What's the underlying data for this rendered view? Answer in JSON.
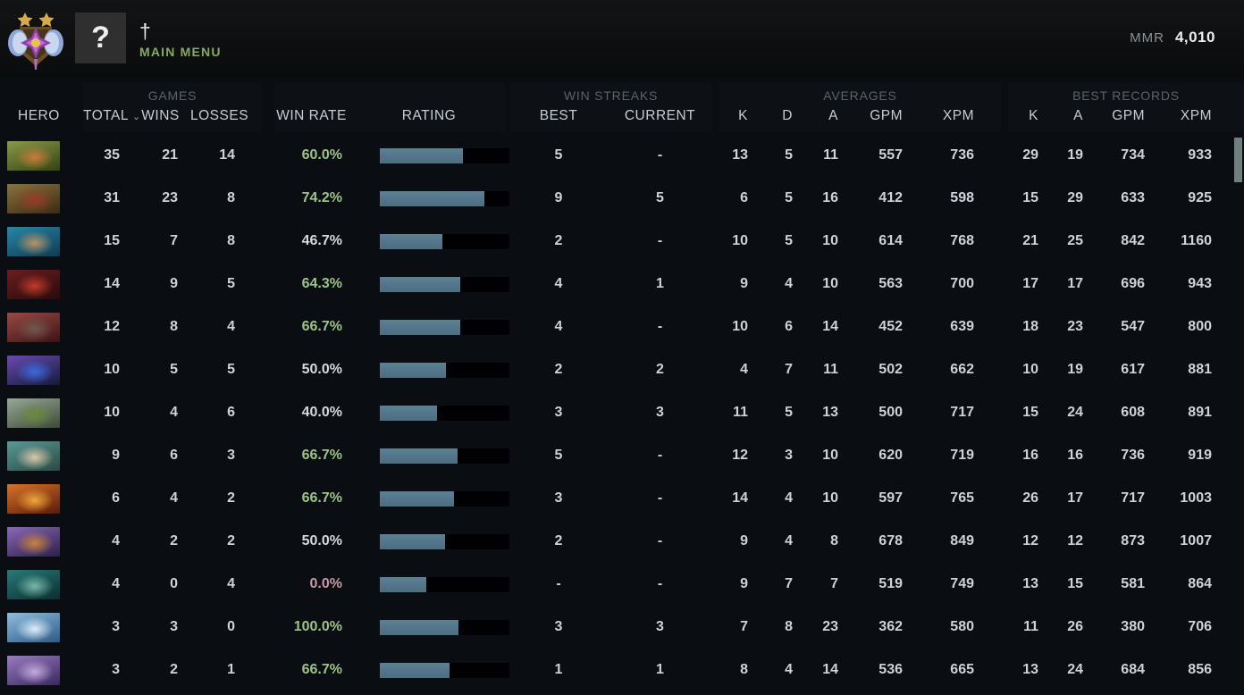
{
  "header": {
    "player_name": "†",
    "avatar_glyph": "?",
    "main_menu_label": "MAIN MENU",
    "mmr_label": "MMR",
    "mmr_value": "4,010"
  },
  "table": {
    "groups": {
      "games": "GAMES",
      "win_streaks": "WIN STREAKS",
      "averages": "AVERAGES",
      "best_records": "BEST RECORDS"
    },
    "columns": {
      "hero": "HERO",
      "total": "TOTAL",
      "wins": "WINS",
      "losses": "LOSSES",
      "win_rate": "WIN RATE",
      "rating": "RATING",
      "best": "BEST",
      "current": "CURRENT",
      "k": "K",
      "d": "D",
      "a": "A",
      "gpm": "GPM",
      "xpm": "XPM"
    },
    "sort_indicator_column": "total",
    "rows": [
      {
        "portrait": {
          "c1": "#8a9a4a",
          "c2": "#35430f",
          "c3": "#c87c3c"
        },
        "total": "35",
        "wins": "21",
        "losses": "14",
        "win_rate": "60.0%",
        "win_rate_color": "green",
        "rating_pct": 64,
        "streak_best": "5",
        "streak_current": "-",
        "avg_k": "13",
        "avg_d": "5",
        "avg_a": "11",
        "avg_gpm": "557",
        "avg_xpm": "736",
        "best_k": "29",
        "best_a": "19",
        "best_gpm": "734",
        "best_xpm": "933"
      },
      {
        "portrait": {
          "c1": "#8a7340",
          "c2": "#3c2a12",
          "c3": "#9a3a28"
        },
        "total": "31",
        "wins": "23",
        "losses": "8",
        "win_rate": "74.2%",
        "win_rate_color": "green",
        "rating_pct": 81,
        "streak_best": "9",
        "streak_current": "5",
        "avg_k": "6",
        "avg_d": "5",
        "avg_a": "16",
        "avg_gpm": "412",
        "avg_xpm": "598",
        "best_k": "15",
        "best_a": "29",
        "best_gpm": "633",
        "best_xpm": "925"
      },
      {
        "portrait": {
          "c1": "#2a86a8",
          "c2": "#0c3c54",
          "c3": "#b89464"
        },
        "total": "15",
        "wins": "7",
        "losses": "8",
        "win_rate": "46.7%",
        "win_rate_color": "white",
        "rating_pct": 48,
        "streak_best": "2",
        "streak_current": "-",
        "avg_k": "10",
        "avg_d": "5",
        "avg_a": "10",
        "avg_gpm": "614",
        "avg_xpm": "768",
        "best_k": "21",
        "best_a": "25",
        "best_gpm": "842",
        "best_xpm": "1160"
      },
      {
        "portrait": {
          "c1": "#6a1e1e",
          "c2": "#2a0a0a",
          "c3": "#c03a2a"
        },
        "total": "14",
        "wins": "9",
        "losses": "5",
        "win_rate": "64.3%",
        "win_rate_color": "green",
        "rating_pct": 62,
        "streak_best": "4",
        "streak_current": "1",
        "avg_k": "9",
        "avg_d": "4",
        "avg_a": "10",
        "avg_gpm": "563",
        "avg_xpm": "700",
        "best_k": "17",
        "best_a": "17",
        "best_gpm": "696",
        "best_xpm": "943"
      },
      {
        "portrait": {
          "c1": "#9a4a44",
          "c2": "#3c1216",
          "c3": "#70584c"
        },
        "total": "12",
        "wins": "8",
        "losses": "4",
        "win_rate": "66.7%",
        "win_rate_color": "green",
        "rating_pct": 62,
        "streak_best": "4",
        "streak_current": "-",
        "avg_k": "10",
        "avg_d": "6",
        "avg_a": "14",
        "avg_gpm": "452",
        "avg_xpm": "639",
        "best_k": "18",
        "best_a": "23",
        "best_gpm": "547",
        "best_xpm": "800"
      },
      {
        "portrait": {
          "c1": "#6a4ab0",
          "c2": "#141a3c",
          "c3": "#3a6ae0"
        },
        "total": "10",
        "wins": "5",
        "losses": "5",
        "win_rate": "50.0%",
        "win_rate_color": "white",
        "rating_pct": 51,
        "streak_best": "2",
        "streak_current": "2",
        "avg_k": "4",
        "avg_d": "7",
        "avg_a": "11",
        "avg_gpm": "502",
        "avg_xpm": "662",
        "best_k": "10",
        "best_a": "19",
        "best_gpm": "617",
        "best_xpm": "881"
      },
      {
        "portrait": {
          "c1": "#9aa89a",
          "c2": "#3c4a34",
          "c3": "#6a8a3c"
        },
        "total": "10",
        "wins": "4",
        "losses": "6",
        "win_rate": "40.0%",
        "win_rate_color": "white",
        "rating_pct": 44,
        "streak_best": "3",
        "streak_current": "3",
        "avg_k": "11",
        "avg_d": "5",
        "avg_a": "13",
        "avg_gpm": "500",
        "avg_xpm": "717",
        "best_k": "15",
        "best_a": "24",
        "best_gpm": "608",
        "best_xpm": "891"
      },
      {
        "portrait": {
          "c1": "#5a9a96",
          "c2": "#2a4a44",
          "c3": "#d8c8a8"
        },
        "total": "9",
        "wins": "6",
        "losses": "3",
        "win_rate": "66.7%",
        "win_rate_color": "green",
        "rating_pct": 60,
        "streak_best": "5",
        "streak_current": "-",
        "avg_k": "12",
        "avg_d": "3",
        "avg_a": "10",
        "avg_gpm": "620",
        "avg_xpm": "719",
        "best_k": "16",
        "best_a": "16",
        "best_gpm": "736",
        "best_xpm": "919"
      },
      {
        "portrait": {
          "c1": "#d8742a",
          "c2": "#5a1a08",
          "c3": "#f0a83a"
        },
        "total": "6",
        "wins": "4",
        "losses": "2",
        "win_rate": "66.7%",
        "win_rate_color": "green",
        "rating_pct": 57,
        "streak_best": "3",
        "streak_current": "-",
        "avg_k": "14",
        "avg_d": "4",
        "avg_a": "10",
        "avg_gpm": "597",
        "avg_xpm": "765",
        "best_k": "26",
        "best_a": "17",
        "best_gpm": "717",
        "best_xpm": "1003"
      },
      {
        "portrait": {
          "c1": "#8a68b8",
          "c2": "#2c2048",
          "c3": "#c8823c"
        },
        "total": "4",
        "wins": "2",
        "losses": "2",
        "win_rate": "50.0%",
        "win_rate_color": "white",
        "rating_pct": 50,
        "streak_best": "2",
        "streak_current": "-",
        "avg_k": "9",
        "avg_d": "4",
        "avg_a": "8",
        "avg_gpm": "678",
        "avg_xpm": "849",
        "best_k": "12",
        "best_a": "12",
        "best_gpm": "873",
        "best_xpm": "1007"
      },
      {
        "portrait": {
          "c1": "#2a7a78",
          "c2": "#0a2e30",
          "c3": "#7ab8a8"
        },
        "total": "4",
        "wins": "0",
        "losses": "4",
        "win_rate": "0.0%",
        "win_rate_color": "red",
        "rating_pct": 36,
        "streak_best": "-",
        "streak_current": "-",
        "avg_k": "9",
        "avg_d": "7",
        "avg_a": "7",
        "avg_gpm": "519",
        "avg_xpm": "749",
        "best_k": "13",
        "best_a": "15",
        "best_gpm": "581",
        "best_xpm": "864"
      },
      {
        "portrait": {
          "c1": "#90bede",
          "c2": "#2a5a88",
          "c3": "#dceefa"
        },
        "total": "3",
        "wins": "3",
        "losses": "0",
        "win_rate": "100.0%",
        "win_rate_color": "green",
        "rating_pct": 61,
        "streak_best": "3",
        "streak_current": "3",
        "avg_k": "7",
        "avg_d": "8",
        "avg_a": "23",
        "avg_gpm": "362",
        "avg_xpm": "580",
        "best_k": "11",
        "best_a": "26",
        "best_gpm": "380",
        "best_xpm": "706"
      },
      {
        "portrait": {
          "c1": "#9a7cc4",
          "c2": "#38285c",
          "c3": "#c4aade"
        },
        "total": "3",
        "wins": "2",
        "losses": "1",
        "win_rate": "66.7%",
        "win_rate_color": "green",
        "rating_pct": 54,
        "streak_best": "1",
        "streak_current": "1",
        "avg_k": "8",
        "avg_d": "4",
        "avg_a": "14",
        "avg_gpm": "536",
        "avg_xpm": "665",
        "best_k": "13",
        "best_a": "24",
        "best_gpm": "684",
        "best_xpm": "856"
      }
    ]
  },
  "colors": {
    "bar_fill": "#53758a",
    "bar_track": "#010103",
    "win_green": "#9dc38a",
    "win_red": "#c69aa0",
    "accent_menu_green": "#85aa60",
    "page_bg": "#0a0d11"
  }
}
